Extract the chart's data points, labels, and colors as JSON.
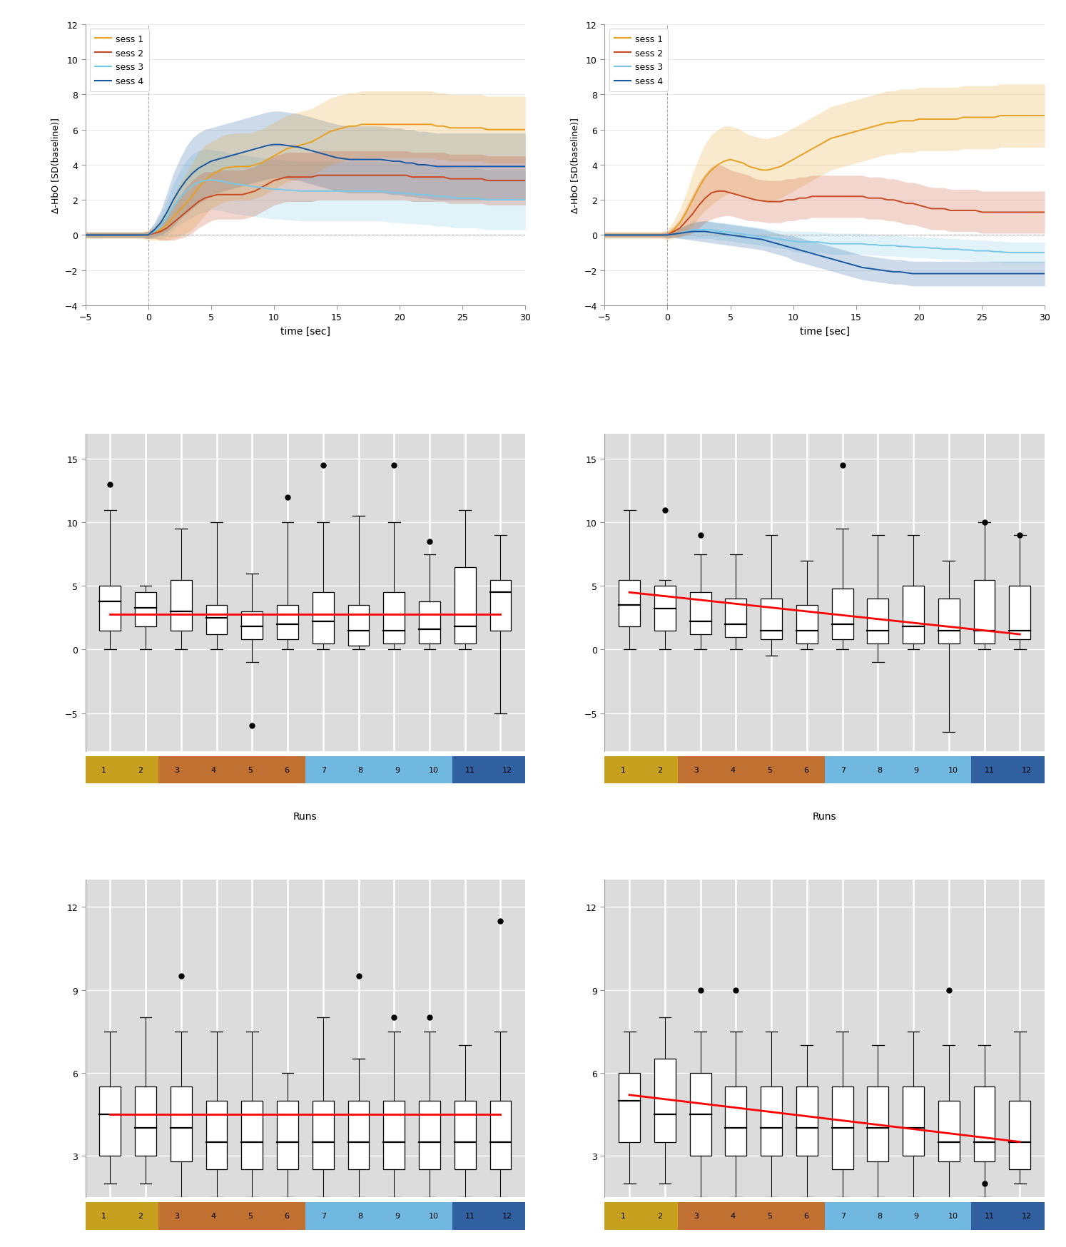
{
  "session_colors": [
    "#E8A020",
    "#C84820",
    "#78C8E8",
    "#1858A0"
  ],
  "session_labels": [
    "sess 1",
    "sess 2",
    "sess 3",
    "sess 4"
  ],
  "time": [
    -5,
    -4.5,
    -4,
    -3.5,
    -3,
    -2.5,
    -2,
    -1.5,
    -1,
    -0.5,
    0,
    0.5,
    1,
    1.5,
    2,
    2.5,
    3,
    3.5,
    4,
    4.5,
    5,
    5.5,
    6,
    6.5,
    7,
    7.5,
    8,
    8.5,
    9,
    9.5,
    10,
    10.5,
    11,
    11.5,
    12,
    12.5,
    13,
    13.5,
    14,
    14.5,
    15,
    15.5,
    16,
    16.5,
    17,
    17.5,
    18,
    18.5,
    19,
    19.5,
    20,
    20.5,
    21,
    21.5,
    22,
    22.5,
    23,
    23.5,
    24,
    24.5,
    25,
    25.5,
    26,
    26.5,
    27,
    27.5,
    28,
    28.5,
    29,
    29.5,
    30
  ],
  "p1_s1_mean": [
    0,
    0,
    0,
    0,
    0,
    0,
    0,
    0,
    0,
    0,
    0,
    0.1,
    0.3,
    0.6,
    1.0,
    1.4,
    1.8,
    2.2,
    2.7,
    3.1,
    3.4,
    3.6,
    3.8,
    3.85,
    3.9,
    3.9,
    3.9,
    4.0,
    4.1,
    4.3,
    4.5,
    4.7,
    4.9,
    5.0,
    5.1,
    5.2,
    5.3,
    5.5,
    5.7,
    5.9,
    6.0,
    6.1,
    6.2,
    6.2,
    6.3,
    6.3,
    6.3,
    6.3,
    6.3,
    6.3,
    6.3,
    6.3,
    6.3,
    6.3,
    6.3,
    6.3,
    6.2,
    6.2,
    6.1,
    6.1,
    6.1,
    6.1,
    6.1,
    6.1,
    6.0,
    6.0,
    6.0,
    6.0,
    6.0,
    6.0,
    6.0
  ],
  "p1_s1_sd": [
    0.2,
    0.2,
    0.2,
    0.2,
    0.2,
    0.2,
    0.2,
    0.2,
    0.2,
    0.2,
    0.3,
    0.4,
    0.6,
    0.9,
    1.2,
    1.5,
    1.7,
    1.9,
    2.0,
    2.0,
    1.9,
    1.9,
    1.9,
    1.9,
    1.9,
    1.9,
    1.9,
    1.9,
    1.9,
    1.9,
    1.9,
    1.9,
    1.9,
    1.9,
    1.9,
    1.9,
    1.9,
    1.9,
    1.9,
    1.9,
    1.9,
    1.9,
    1.9,
    1.9,
    1.9,
    1.9,
    1.9,
    1.9,
    1.9,
    1.9,
    1.9,
    1.9,
    1.9,
    1.9,
    1.9,
    1.9,
    1.9,
    1.9,
    1.9,
    1.9,
    1.9,
    1.9,
    1.9,
    1.9,
    1.9,
    1.9,
    1.9,
    1.9,
    1.9,
    1.9,
    1.9
  ],
  "p1_s2_mean": [
    0,
    0,
    0,
    0,
    0,
    0,
    0,
    0,
    0,
    0,
    0,
    0.1,
    0.2,
    0.4,
    0.7,
    1.0,
    1.3,
    1.6,
    1.9,
    2.1,
    2.2,
    2.3,
    2.3,
    2.3,
    2.3,
    2.3,
    2.4,
    2.5,
    2.7,
    2.9,
    3.1,
    3.2,
    3.3,
    3.3,
    3.3,
    3.3,
    3.3,
    3.4,
    3.4,
    3.4,
    3.4,
    3.4,
    3.4,
    3.4,
    3.4,
    3.4,
    3.4,
    3.4,
    3.4,
    3.4,
    3.4,
    3.4,
    3.3,
    3.3,
    3.3,
    3.3,
    3.3,
    3.3,
    3.2,
    3.2,
    3.2,
    3.2,
    3.2,
    3.2,
    3.1,
    3.1,
    3.1,
    3.1,
    3.1,
    3.1,
    3.1
  ],
  "p1_s2_sd": [
    0.15,
    0.15,
    0.15,
    0.15,
    0.15,
    0.15,
    0.15,
    0.15,
    0.15,
    0.15,
    0.2,
    0.3,
    0.5,
    0.7,
    1.0,
    1.2,
    1.4,
    1.5,
    1.5,
    1.5,
    1.4,
    1.4,
    1.4,
    1.4,
    1.4,
    1.4,
    1.4,
    1.4,
    1.4,
    1.4,
    1.4,
    1.4,
    1.4,
    1.4,
    1.4,
    1.4,
    1.4,
    1.4,
    1.4,
    1.4,
    1.4,
    1.4,
    1.4,
    1.4,
    1.4,
    1.4,
    1.4,
    1.4,
    1.4,
    1.4,
    1.4,
    1.4,
    1.4,
    1.4,
    1.4,
    1.4,
    1.4,
    1.4,
    1.4,
    1.4,
    1.4,
    1.4,
    1.4,
    1.4,
    1.4,
    1.4,
    1.4,
    1.4,
    1.4,
    1.4,
    1.4
  ],
  "p1_s3_mean": [
    0,
    0,
    0,
    0,
    0,
    0,
    0,
    0,
    0,
    0,
    0,
    0.2,
    0.5,
    1.0,
    1.6,
    2.1,
    2.5,
    2.8,
    3.0,
    3.1,
    3.15,
    3.1,
    3.05,
    2.95,
    2.9,
    2.85,
    2.8,
    2.75,
    2.7,
    2.65,
    2.6,
    2.6,
    2.55,
    2.55,
    2.5,
    2.5,
    2.5,
    2.5,
    2.5,
    2.5,
    2.5,
    2.5,
    2.5,
    2.5,
    2.5,
    2.5,
    2.5,
    2.5,
    2.45,
    2.4,
    2.4,
    2.35,
    2.35,
    2.3,
    2.3,
    2.25,
    2.2,
    2.2,
    2.15,
    2.1,
    2.1,
    2.1,
    2.1,
    2.05,
    2.0,
    2.0,
    2.0,
    2.0,
    2.0,
    2.0,
    2.0
  ],
  "p1_s3_sd": [
    0.15,
    0.15,
    0.15,
    0.15,
    0.15,
    0.15,
    0.15,
    0.15,
    0.15,
    0.15,
    0.2,
    0.4,
    0.7,
    1.0,
    1.3,
    1.5,
    1.7,
    1.8,
    1.8,
    1.8,
    1.7,
    1.7,
    1.7,
    1.7,
    1.7,
    1.7,
    1.7,
    1.7,
    1.7,
    1.7,
    1.7,
    1.7,
    1.7,
    1.7,
    1.7,
    1.7,
    1.7,
    1.7,
    1.7,
    1.7,
    1.7,
    1.7,
    1.7,
    1.7,
    1.7,
    1.7,
    1.7,
    1.7,
    1.7,
    1.7,
    1.7,
    1.7,
    1.7,
    1.7,
    1.7,
    1.7,
    1.7,
    1.7,
    1.7,
    1.7,
    1.7,
    1.7,
    1.7,
    1.7,
    1.7,
    1.7,
    1.7,
    1.7,
    1.7,
    1.7,
    1.7
  ],
  "p1_s4_mean": [
    0,
    0,
    0,
    0,
    0,
    0,
    0,
    0,
    0,
    0,
    0,
    0.3,
    0.7,
    1.3,
    2.0,
    2.6,
    3.1,
    3.5,
    3.8,
    4.0,
    4.2,
    4.3,
    4.4,
    4.5,
    4.6,
    4.7,
    4.8,
    4.9,
    5.0,
    5.1,
    5.15,
    5.15,
    5.1,
    5.05,
    5.0,
    4.9,
    4.8,
    4.7,
    4.6,
    4.5,
    4.4,
    4.35,
    4.3,
    4.3,
    4.3,
    4.3,
    4.3,
    4.3,
    4.25,
    4.2,
    4.2,
    4.1,
    4.1,
    4.0,
    4.0,
    3.95,
    3.9,
    3.9,
    3.9,
    3.9,
    3.9,
    3.9,
    3.9,
    3.9,
    3.9,
    3.9,
    3.9,
    3.9,
    3.9,
    3.9,
    3.9
  ],
  "p1_s4_sd": [
    0.15,
    0.15,
    0.15,
    0.15,
    0.15,
    0.15,
    0.15,
    0.15,
    0.15,
    0.15,
    0.2,
    0.4,
    0.7,
    1.1,
    1.5,
    1.7,
    1.9,
    2.0,
    2.0,
    2.0,
    1.9,
    1.9,
    1.9,
    1.9,
    1.9,
    1.9,
    1.9,
    1.9,
    1.9,
    1.9,
    1.9,
    1.9,
    1.9,
    1.9,
    1.9,
    1.9,
    1.9,
    1.9,
    1.9,
    1.9,
    1.9,
    1.9,
    1.9,
    1.9,
    1.9,
    1.9,
    1.9,
    1.9,
    1.9,
    1.9,
    1.9,
    1.9,
    1.9,
    1.9,
    1.9,
    1.9,
    1.9,
    1.9,
    1.9,
    1.9,
    1.9,
    1.9,
    1.9,
    1.9,
    1.9,
    1.9,
    1.9,
    1.9,
    1.9,
    1.9,
    1.9
  ],
  "p2_s1_mean": [
    0,
    0,
    0,
    0,
    0,
    0,
    0,
    0,
    0,
    0,
    0,
    0.3,
    0.7,
    1.3,
    2.0,
    2.7,
    3.3,
    3.7,
    4.0,
    4.2,
    4.3,
    4.2,
    4.1,
    3.9,
    3.8,
    3.7,
    3.7,
    3.8,
    3.9,
    4.1,
    4.3,
    4.5,
    4.7,
    4.9,
    5.1,
    5.3,
    5.5,
    5.6,
    5.7,
    5.8,
    5.9,
    6.0,
    6.1,
    6.2,
    6.3,
    6.4,
    6.4,
    6.5,
    6.5,
    6.5,
    6.6,
    6.6,
    6.6,
    6.6,
    6.6,
    6.6,
    6.6,
    6.7,
    6.7,
    6.7,
    6.7,
    6.7,
    6.7,
    6.8,
    6.8,
    6.8,
    6.8,
    6.8,
    6.8,
    6.8,
    6.8
  ],
  "p2_s1_sd": [
    0.2,
    0.2,
    0.2,
    0.2,
    0.2,
    0.2,
    0.2,
    0.2,
    0.2,
    0.2,
    0.3,
    0.5,
    0.8,
    1.1,
    1.5,
    1.7,
    1.9,
    2.0,
    2.0,
    2.0,
    1.9,
    1.9,
    1.8,
    1.8,
    1.8,
    1.8,
    1.8,
    1.8,
    1.8,
    1.8,
    1.8,
    1.8,
    1.8,
    1.8,
    1.8,
    1.8,
    1.8,
    1.8,
    1.8,
    1.8,
    1.8,
    1.8,
    1.8,
    1.8,
    1.8,
    1.8,
    1.8,
    1.8,
    1.8,
    1.8,
    1.8,
    1.8,
    1.8,
    1.8,
    1.8,
    1.8,
    1.8,
    1.8,
    1.8,
    1.8,
    1.8,
    1.8,
    1.8,
    1.8,
    1.8,
    1.8,
    1.8,
    1.8,
    1.8,
    1.8,
    1.8
  ],
  "p2_s2_mean": [
    0,
    0,
    0,
    0,
    0,
    0,
    0,
    0,
    0,
    0,
    0,
    0.2,
    0.4,
    0.8,
    1.2,
    1.7,
    2.1,
    2.4,
    2.5,
    2.5,
    2.4,
    2.3,
    2.2,
    2.1,
    2.0,
    1.95,
    1.9,
    1.9,
    1.9,
    2.0,
    2.0,
    2.1,
    2.1,
    2.2,
    2.2,
    2.2,
    2.2,
    2.2,
    2.2,
    2.2,
    2.2,
    2.2,
    2.1,
    2.1,
    2.1,
    2.0,
    2.0,
    1.9,
    1.8,
    1.8,
    1.7,
    1.6,
    1.5,
    1.5,
    1.5,
    1.4,
    1.4,
    1.4,
    1.4,
    1.4,
    1.3,
    1.3,
    1.3,
    1.3,
    1.3,
    1.3,
    1.3,
    1.3,
    1.3,
    1.3,
    1.3
  ],
  "p2_s2_sd": [
    0.15,
    0.15,
    0.15,
    0.15,
    0.15,
    0.15,
    0.15,
    0.15,
    0.15,
    0.15,
    0.2,
    0.3,
    0.5,
    0.8,
    1.1,
    1.3,
    1.4,
    1.5,
    1.5,
    1.4,
    1.3,
    1.3,
    1.3,
    1.3,
    1.2,
    1.2,
    1.2,
    1.2,
    1.2,
    1.2,
    1.2,
    1.2,
    1.2,
    1.2,
    1.2,
    1.2,
    1.2,
    1.2,
    1.2,
    1.2,
    1.2,
    1.2,
    1.2,
    1.2,
    1.2,
    1.2,
    1.2,
    1.2,
    1.2,
    1.2,
    1.2,
    1.2,
    1.2,
    1.2,
    1.2,
    1.2,
    1.2,
    1.2,
    1.2,
    1.2,
    1.2,
    1.2,
    1.2,
    1.2,
    1.2,
    1.2,
    1.2,
    1.2,
    1.2,
    1.2,
    1.2
  ],
  "p2_s3_mean": [
    0,
    0,
    0,
    0,
    0,
    0,
    0,
    0,
    0,
    0,
    0,
    0.05,
    0.1,
    0.2,
    0.3,
    0.3,
    0.3,
    0.3,
    0.2,
    0.2,
    0.15,
    0.1,
    0.05,
    0.0,
    -0.05,
    -0.1,
    -0.15,
    -0.2,
    -0.25,
    -0.3,
    -0.35,
    -0.4,
    -0.4,
    -0.4,
    -0.4,
    -0.45,
    -0.5,
    -0.5,
    -0.5,
    -0.5,
    -0.5,
    -0.5,
    -0.55,
    -0.55,
    -0.6,
    -0.6,
    -0.6,
    -0.65,
    -0.65,
    -0.7,
    -0.7,
    -0.7,
    -0.75,
    -0.75,
    -0.8,
    -0.8,
    -0.8,
    -0.85,
    -0.85,
    -0.9,
    -0.9,
    -0.9,
    -0.95,
    -0.95,
    -1.0,
    -1.0,
    -1.0,
    -1.0,
    -1.0,
    -1.0,
    -1.0
  ],
  "p2_s3_sd": [
    0.1,
    0.1,
    0.1,
    0.1,
    0.1,
    0.1,
    0.1,
    0.1,
    0.1,
    0.1,
    0.15,
    0.2,
    0.3,
    0.4,
    0.5,
    0.5,
    0.5,
    0.5,
    0.5,
    0.5,
    0.5,
    0.5,
    0.5,
    0.5,
    0.5,
    0.5,
    0.5,
    0.5,
    0.5,
    0.5,
    0.6,
    0.6,
    0.6,
    0.6,
    0.6,
    0.6,
    0.6,
    0.6,
    0.6,
    0.6,
    0.6,
    0.6,
    0.6,
    0.6,
    0.6,
    0.6,
    0.6,
    0.6,
    0.6,
    0.6,
    0.6,
    0.6,
    0.6,
    0.6,
    0.6,
    0.6,
    0.6,
    0.6,
    0.6,
    0.6,
    0.6,
    0.6,
    0.6,
    0.6,
    0.6,
    0.6,
    0.6,
    0.6,
    0.6,
    0.6,
    0.6
  ],
  "p2_s4_mean": [
    0,
    0,
    0,
    0,
    0,
    0,
    0,
    0,
    0,
    0,
    0,
    0.05,
    0.1,
    0.15,
    0.2,
    0.2,
    0.2,
    0.15,
    0.1,
    0.05,
    0.0,
    -0.05,
    -0.1,
    -0.15,
    -0.2,
    -0.25,
    -0.35,
    -0.45,
    -0.55,
    -0.65,
    -0.75,
    -0.85,
    -0.95,
    -1.05,
    -1.15,
    -1.25,
    -1.35,
    -1.45,
    -1.55,
    -1.65,
    -1.75,
    -1.85,
    -1.9,
    -1.95,
    -2.0,
    -2.05,
    -2.1,
    -2.1,
    -2.15,
    -2.2,
    -2.2,
    -2.2,
    -2.2,
    -2.2,
    -2.2,
    -2.2,
    -2.2,
    -2.2,
    -2.2,
    -2.2,
    -2.2,
    -2.2,
    -2.2,
    -2.2,
    -2.2,
    -2.2,
    -2.2,
    -2.2,
    -2.2,
    -2.2,
    -2.2
  ],
  "p2_s4_sd": [
    0.1,
    0.1,
    0.1,
    0.1,
    0.1,
    0.1,
    0.1,
    0.1,
    0.1,
    0.1,
    0.15,
    0.2,
    0.3,
    0.4,
    0.5,
    0.55,
    0.6,
    0.6,
    0.6,
    0.6,
    0.6,
    0.6,
    0.6,
    0.6,
    0.6,
    0.6,
    0.6,
    0.6,
    0.6,
    0.6,
    0.7,
    0.7,
    0.7,
    0.7,
    0.7,
    0.7,
    0.7,
    0.7,
    0.7,
    0.7,
    0.7,
    0.7,
    0.7,
    0.7,
    0.7,
    0.7,
    0.7,
    0.7,
    0.7,
    0.7,
    0.7,
    0.7,
    0.7,
    0.7,
    0.7,
    0.7,
    0.7,
    0.7,
    0.7,
    0.7,
    0.7,
    0.7,
    0.7,
    0.7,
    0.7,
    0.7,
    0.7,
    0.7,
    0.7,
    0.7,
    0.7
  ],
  "ylabel_line": "Δ-HbO [SD(baseline)]",
  "xlabel_line": "time [sec]",
  "xlim_line": [
    -5,
    30
  ],
  "ylim_line": [
    -4,
    12
  ],
  "yticks_line": [
    -4,
    -2,
    0,
    2,
    4,
    6,
    8,
    10,
    12
  ],
  "xticks_line": [
    -5,
    0,
    5,
    10,
    15,
    20,
    25,
    30
  ],
  "bg_color_box": "#DCDCDC",
  "run_colors_bottom": [
    "#C8A020",
    "#C8A020",
    "#C07030",
    "#C07030",
    "#C07030",
    "#C07030",
    "#70B8E0",
    "#70B8E0",
    "#70B8E0",
    "#70B8E0",
    "#3060A0",
    "#3060A0"
  ],
  "run_label_colors": [
    "#C8A020",
    "#C8A020",
    "#C07030",
    "#C07030",
    "#C07030",
    "#C07030",
    "#70B8E0",
    "#70B8E0",
    "#70B8E0",
    "#70B8E0",
    "#3060A0",
    "#3060A0"
  ],
  "xlabel_box": "Runs",
  "b1L_med": [
    3.8,
    3.3,
    3.0,
    2.5,
    1.8,
    2.0,
    2.2,
    1.5,
    1.5,
    1.6,
    1.8,
    4.5
  ],
  "b1L_q1": [
    1.5,
    1.8,
    1.5,
    1.2,
    0.8,
    0.8,
    0.5,
    0.3,
    0.5,
    0.5,
    0.5,
    1.5
  ],
  "b1L_q3": [
    5.0,
    4.5,
    5.5,
    3.5,
    3.0,
    3.5,
    4.5,
    3.5,
    4.5,
    3.8,
    6.5,
    5.5
  ],
  "b1L_wlo": [
    0.0,
    0.0,
    0.0,
    0.0,
    -1.0,
    0.0,
    0.0,
    0.0,
    0.0,
    0.0,
    0.0,
    -5.0
  ],
  "b1L_whi": [
    11.0,
    5.0,
    9.5,
    10.0,
    6.0,
    10.0,
    10.0,
    10.5,
    10.0,
    7.5,
    11.0,
    9.0
  ],
  "b1L_fhi": [
    13.0,
    null,
    null,
    null,
    null,
    12.0,
    14.5,
    null,
    14.5,
    8.5,
    null,
    null
  ],
  "b1L_flo": [
    null,
    null,
    null,
    null,
    -6.0,
    null,
    null,
    null,
    null,
    null,
    null,
    null
  ],
  "b1R_med": [
    3.5,
    3.2,
    2.2,
    2.0,
    1.5,
    1.5,
    2.0,
    1.5,
    1.8,
    1.5,
    1.5,
    1.5
  ],
  "b1R_q1": [
    1.8,
    1.5,
    1.2,
    1.0,
    0.8,
    0.5,
    0.8,
    0.5,
    0.5,
    0.5,
    0.5,
    0.8
  ],
  "b1R_q3": [
    5.5,
    5.0,
    4.5,
    4.0,
    4.0,
    3.5,
    4.8,
    4.0,
    5.0,
    4.0,
    5.5,
    5.0
  ],
  "b1R_wlo": [
    0.0,
    0.0,
    0.0,
    0.0,
    -0.5,
    0.0,
    0.0,
    -1.0,
    0.0,
    -6.5,
    0.0,
    0.0
  ],
  "b1R_whi": [
    11.0,
    5.5,
    7.5,
    7.5,
    9.0,
    7.0,
    9.5,
    9.0,
    9.0,
    7.0,
    10.0,
    9.0
  ],
  "b1R_fhi": [
    null,
    11.0,
    9.0,
    null,
    null,
    null,
    14.5,
    null,
    null,
    null,
    10.0,
    9.0
  ],
  "b1R_flo": [
    null,
    null,
    null,
    null,
    null,
    null,
    null,
    null,
    null,
    null,
    null,
    null
  ],
  "b2L_med": [
    4.5,
    4.0,
    4.0,
    3.5,
    3.5,
    3.5,
    3.5,
    3.5,
    3.5,
    3.5,
    3.5,
    3.5
  ],
  "b2L_q1": [
    3.0,
    3.0,
    2.8,
    2.5,
    2.5,
    2.5,
    2.5,
    2.5,
    2.5,
    2.5,
    2.5,
    2.5
  ],
  "b2L_q3": [
    5.5,
    5.5,
    5.5,
    5.0,
    5.0,
    5.0,
    5.0,
    5.0,
    5.0,
    5.0,
    5.0,
    5.0
  ],
  "b2L_wlo": [
    2.0,
    2.0,
    1.5,
    1.5,
    1.5,
    1.5,
    1.5,
    1.5,
    1.5,
    1.5,
    1.5,
    1.5
  ],
  "b2L_whi": [
    7.5,
    8.0,
    7.5,
    7.5,
    7.5,
    6.0,
    8.0,
    6.5,
    7.5,
    7.5,
    7.0,
    7.5
  ],
  "b2L_fhi": [
    null,
    null,
    9.5,
    null,
    null,
    null,
    null,
    9.5,
    8.0,
    8.0,
    null,
    11.5
  ],
  "b2L_flo": [
    null,
    null,
    null,
    null,
    null,
    null,
    null,
    null,
    null,
    null,
    null,
    null
  ],
  "b2R_med": [
    5.0,
    4.5,
    4.5,
    4.0,
    4.0,
    4.0,
    4.0,
    4.0,
    4.0,
    3.5,
    3.5,
    3.5
  ],
  "b2R_q1": [
    3.5,
    3.5,
    3.0,
    3.0,
    3.0,
    3.0,
    2.5,
    2.8,
    3.0,
    2.8,
    2.8,
    2.5
  ],
  "b2R_q3": [
    6.0,
    6.5,
    6.0,
    5.5,
    5.5,
    5.5,
    5.5,
    5.5,
    5.5,
    5.0,
    5.5,
    5.0
  ],
  "b2R_wlo": [
    2.0,
    2.0,
    1.5,
    1.5,
    1.5,
    1.5,
    1.5,
    1.5,
    1.5,
    1.0,
    1.5,
    2.0
  ],
  "b2R_whi": [
    7.5,
    8.0,
    7.5,
    7.5,
    7.5,
    7.0,
    7.5,
    7.0,
    7.5,
    7.0,
    7.0,
    7.5
  ],
  "b2R_fhi": [
    null,
    null,
    9.0,
    9.0,
    null,
    null,
    null,
    null,
    null,
    9.0,
    null,
    null
  ],
  "b2R_flo": [
    null,
    null,
    null,
    null,
    null,
    null,
    null,
    null,
    null,
    null,
    2.0,
    null
  ],
  "trend_b1L": [
    2.8,
    2.8
  ],
  "trend_b1R": [
    4.5,
    1.2
  ],
  "trend_b2L": [
    4.5,
    4.5
  ],
  "trend_b2R": [
    5.2,
    3.5
  ],
  "ylim_b1": [
    -8,
    17
  ],
  "yticks_b1": [
    -5,
    0,
    5,
    10,
    15
  ],
  "ylim_b2": [
    1.5,
    13
  ],
  "yticks_b2": [
    3,
    6,
    9,
    12
  ]
}
